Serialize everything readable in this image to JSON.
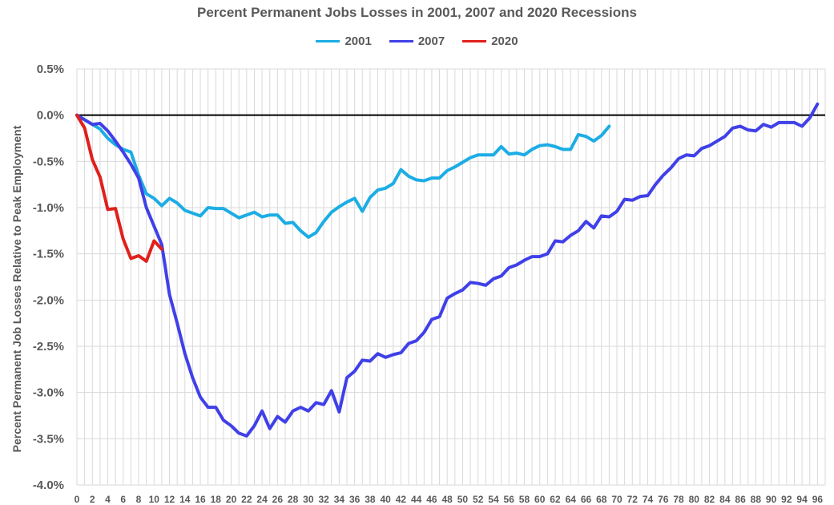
{
  "chart_data": {
    "type": "line",
    "title": "Percent Permanent Jobs Losses in 2001, 2007 and 2020 Recessions",
    "xlabel": "",
    "ylabel": "Percent Permanent Job Losses Relative to Peak Employment",
    "xlim": [
      0,
      97
    ],
    "ylim": [
      -4.0,
      0.5
    ],
    "ytick_step": 0.5,
    "xtick_step": 2,
    "grid": true,
    "legend_position": "top",
    "series": [
      {
        "name": "2001",
        "color": "#1CADE4",
        "values": [
          0,
          -0.05,
          -0.1,
          -0.15,
          -0.25,
          -0.32,
          -0.37,
          -0.4,
          -0.65,
          -0.85,
          -0.9,
          -0.98,
          -0.9,
          -0.95,
          -1.03,
          -1.06,
          -1.09,
          -1.0,
          -1.01,
          -1.01,
          -1.06,
          -1.11,
          -1.08,
          -1.05,
          -1.1,
          -1.08,
          -1.08,
          -1.17,
          -1.16,
          -1.25,
          -1.32,
          -1.27,
          -1.15,
          -1.05,
          -0.99,
          -0.94,
          -0.9,
          -1.04,
          -0.89,
          -0.81,
          -0.79,
          -0.74,
          -0.59,
          -0.66,
          -0.7,
          -0.71,
          -0.68,
          -0.68,
          -0.6,
          -0.56,
          -0.51,
          -0.46,
          -0.43,
          -0.43,
          -0.43,
          -0.34,
          -0.42,
          -0.41,
          -0.43,
          -0.37,
          -0.33,
          -0.32,
          -0.34,
          -0.37,
          -0.37,
          -0.21,
          -0.23,
          -0.28,
          -0.22,
          -0.12
        ]
      },
      {
        "name": "2007",
        "color": "#4040E8",
        "values": [
          0,
          -0.05,
          -0.1,
          -0.09,
          -0.17,
          -0.28,
          -0.4,
          -0.53,
          -0.68,
          -1.0,
          -1.2,
          -1.4,
          -1.94,
          -2.25,
          -2.58,
          -2.84,
          -3.05,
          -3.16,
          -3.16,
          -3.3,
          -3.36,
          -3.44,
          -3.47,
          -3.36,
          -3.2,
          -3.39,
          -3.26,
          -3.32,
          -3.2,
          -3.16,
          -3.2,
          -3.11,
          -3.13,
          -2.98,
          -3.21,
          -2.84,
          -2.77,
          -2.65,
          -2.66,
          -2.58,
          -2.62,
          -2.59,
          -2.57,
          -2.47,
          -2.44,
          -2.35,
          -2.21,
          -2.18,
          -1.98,
          -1.93,
          -1.89,
          -1.81,
          -1.82,
          -1.84,
          -1.77,
          -1.74,
          -1.65,
          -1.62,
          -1.57,
          -1.53,
          -1.53,
          -1.5,
          -1.36,
          -1.37,
          -1.3,
          -1.25,
          -1.15,
          -1.22,
          -1.09,
          -1.1,
          -1.04,
          -0.91,
          -0.92,
          -0.88,
          -0.87,
          -0.75,
          -0.65,
          -0.57,
          -0.47,
          -0.43,
          -0.44,
          -0.36,
          -0.33,
          -0.28,
          -0.23,
          -0.14,
          -0.12,
          -0.16,
          -0.17,
          -0.1,
          -0.13,
          -0.08,
          -0.08,
          -0.08,
          -0.12,
          -0.03,
          0.12
        ]
      },
      {
        "name": "2020",
        "color": "#E0201B",
        "values": [
          0,
          -0.14,
          -0.48,
          -0.67,
          -1.02,
          -1.01,
          -1.34,
          -1.55,
          -1.52,
          -1.58,
          -1.36,
          -1.45
        ]
      }
    ]
  }
}
